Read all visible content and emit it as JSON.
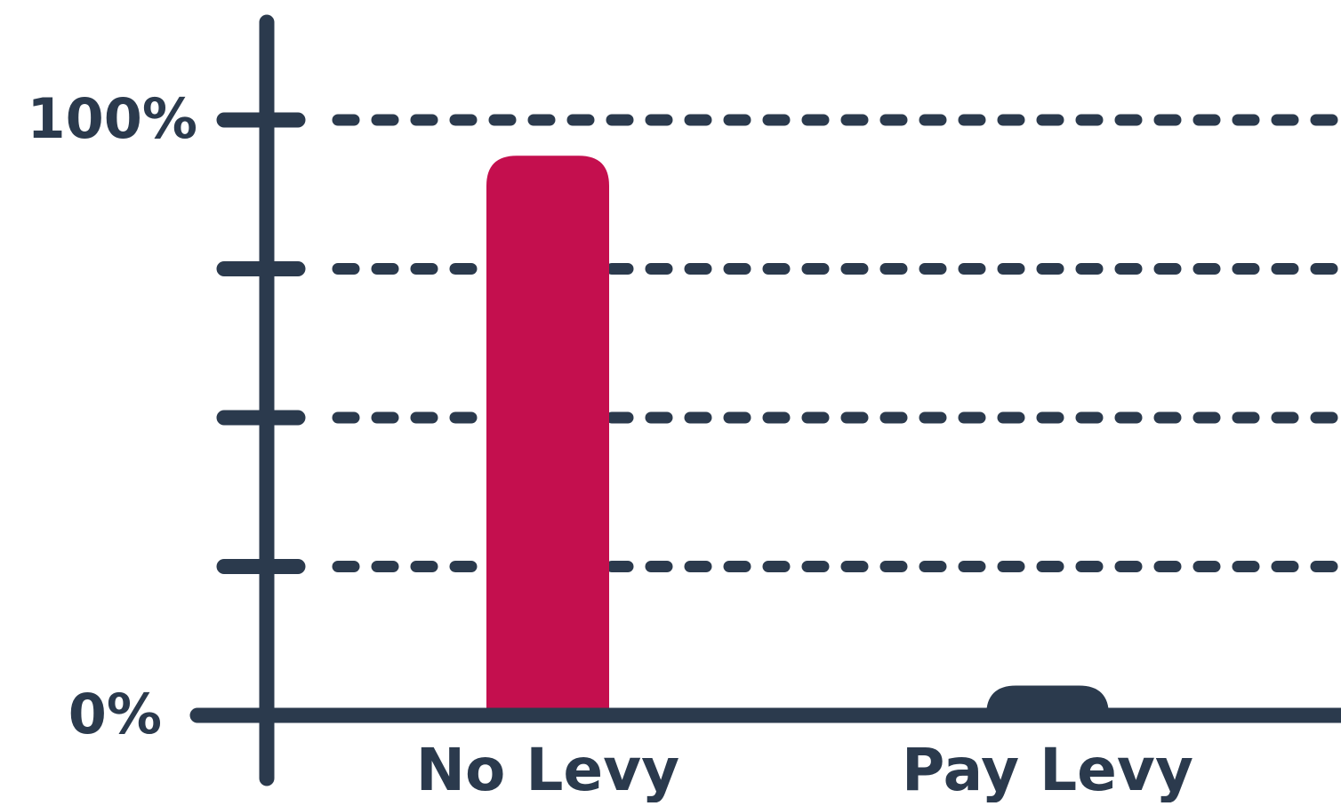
{
  "colors": {
    "axis": "#2b3a4d",
    "highlight": "#c40f4e",
    "background": "#ffffff"
  },
  "chart_data": {
    "type": "bar",
    "categories": [
      "No Levy",
      "Pay Levy"
    ],
    "values": [
      94,
      5
    ],
    "bar_colors": [
      "#c40f4e",
      "#2b3a4d"
    ],
    "y_ticks": [
      0,
      25,
      50,
      75,
      100
    ],
    "y_tick_labels": [
      "0%",
      "",
      "",
      "",
      "100%"
    ],
    "ylim": [
      0,
      100
    ],
    "grid": "dashed horizontal",
    "title": "",
    "xlabel": "",
    "ylabel": ""
  }
}
